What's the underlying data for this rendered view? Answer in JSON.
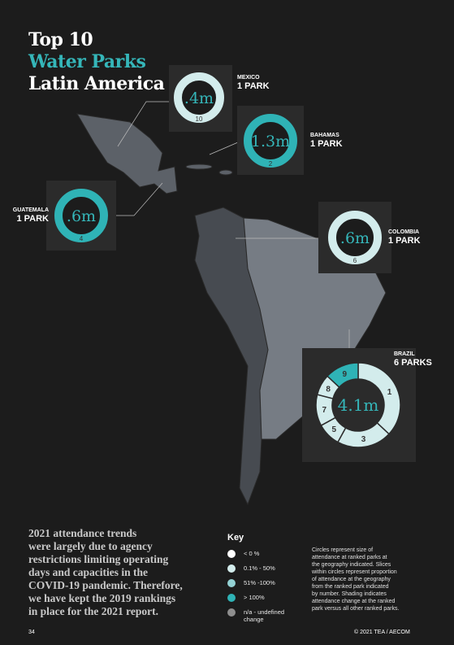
{
  "title": {
    "line1": "Top 10",
    "line2": "Water Parks",
    "line3": "Latin America"
  },
  "locations": [
    {
      "country": "MEXICO",
      "parks": "1 PARK",
      "attendance": ".4m",
      "rank": "10",
      "color": "#d3ecec"
    },
    {
      "country": "BAHAMAS",
      "parks": "1 PARK",
      "attendance": "1.3m",
      "rank": "2",
      "color": "#2fb3b6"
    },
    {
      "country": "GUATEMALA",
      "parks": "1 PARK",
      "attendance": ".6m",
      "rank": "4",
      "color": "#2fb3b6"
    },
    {
      "country": "COLOMBIA",
      "parks": "1 PARK",
      "attendance": ".6m",
      "rank": "6",
      "color": "#d3ecec"
    },
    {
      "country": "BRAZIL",
      "parks": "6 PARKS",
      "attendance": "4.1m",
      "slices": [
        {
          "rank": "1",
          "share": 37,
          "color": "#d3ecec"
        },
        {
          "rank": "3",
          "share": 21,
          "color": "#d3ecec"
        },
        {
          "rank": "5",
          "share": 9,
          "color": "#d3ecec"
        },
        {
          "rank": "7",
          "share": 12,
          "color": "#d3ecec"
        },
        {
          "rank": "8",
          "share": 8,
          "color": "#d3ecec"
        },
        {
          "rank": "9",
          "share": 13,
          "color": "#2fb3b6"
        }
      ]
    }
  ],
  "body_text": [
    "2021 attendance trends",
    "were largely due to agency",
    "restrictions limiting operating",
    "days and capacities in the",
    "COVID-19 pandemic. Therefore,",
    "we have kept the 2019 rankings",
    "in place for the 2021 report."
  ],
  "key": {
    "title": "Key",
    "items": [
      {
        "label": "< 0 %",
        "color": "#ffffff"
      },
      {
        "label": "0.1% - 50%",
        "color": "#d3ecec"
      },
      {
        "label": "51% -100%",
        "color": "#93d2d4"
      },
      {
        "label": "> 100%",
        "color": "#2fb3b6"
      },
      {
        "label": "n/a - undefined change",
        "color": "#8e8e8e"
      }
    ]
  },
  "key_note": [
    "Circles represent size of",
    "attendance at ranked parks at",
    "the geography indicated. Slices",
    "within circles represent proportion",
    "of attendance at the geography",
    "from the ranked park indicated",
    "by number. Shading indicates",
    "attendance change at the ranked",
    "park versus all other ranked parks."
  ],
  "footer": {
    "page": "34",
    "copyright": "© 2021 TEA / AECOM"
  }
}
